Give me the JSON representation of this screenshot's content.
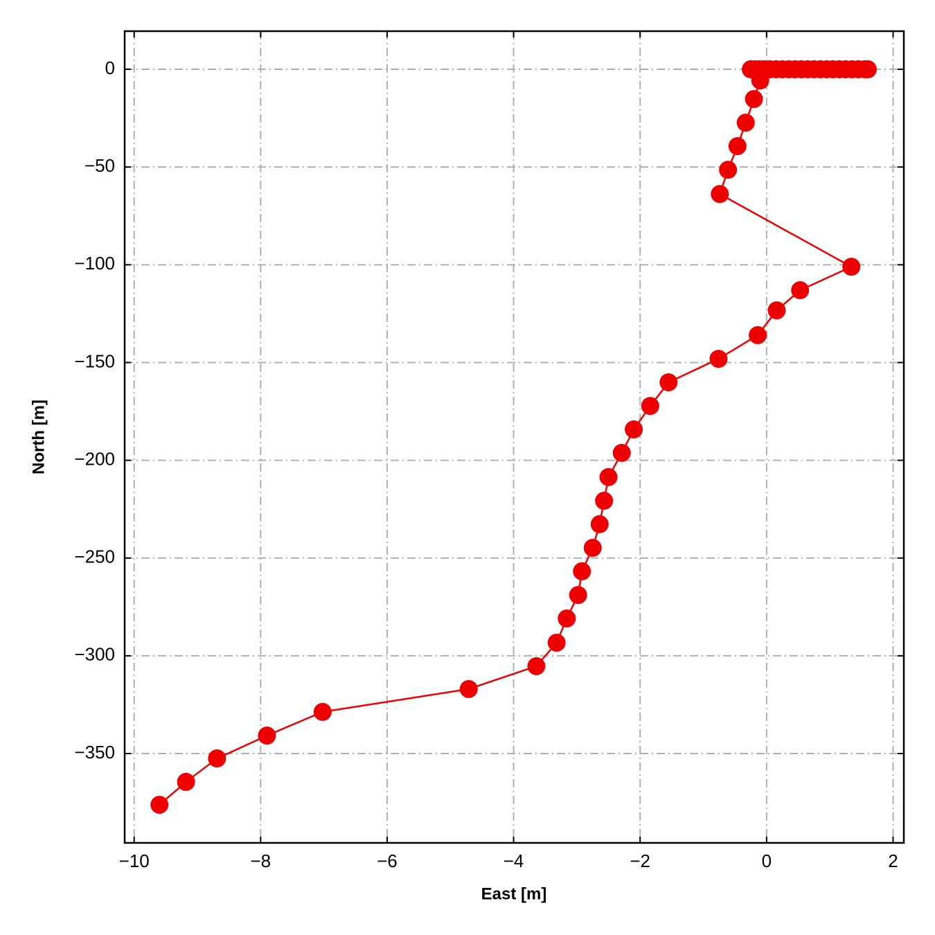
{
  "chart_data": {
    "type": "line",
    "x_label": "East [m]",
    "y_label": "North [m]",
    "series": [
      {
        "color": "#ee0000",
        "x": [
          -9.6,
          -9.18,
          -8.69,
          -7.9,
          -7.02,
          -4.71,
          -3.64,
          -3.32,
          -3.16,
          -2.98,
          -2.92,
          -2.75,
          -2.64,
          -2.57,
          -2.5,
          -2.29,
          -2.1,
          -1.84,
          -1.55,
          -0.76,
          -0.14,
          0.16,
          0.53,
          1.34,
          -0.74,
          -0.61,
          -0.46,
          -0.33,
          -0.2,
          -0.1,
          -0.25,
          -0.18,
          -0.11,
          -0.04,
          0.05,
          0.15,
          0.25,
          0.35,
          0.45,
          0.55,
          0.65,
          0.75,
          0.85,
          0.95,
          1.05,
          1.15,
          1.25,
          1.35,
          1.45,
          1.55,
          1.6
        ],
        "values": [
          -376.2,
          -364.5,
          -352.5,
          -340.8,
          -328.7,
          -317.0,
          -305.3,
          -293.3,
          -280.9,
          -268.9,
          -256.8,
          -244.8,
          -232.7,
          -220.7,
          -208.6,
          -196.2,
          -184.2,
          -172.2,
          -160.1,
          -148.1,
          -136.0,
          -123.3,
          -113.0,
          -101.0,
          -63.8,
          -51.4,
          -39.3,
          -27.3,
          -15.2,
          -5.7,
          0,
          0,
          0,
          0,
          0,
          0,
          0,
          0,
          0,
          0,
          0,
          0,
          0,
          0,
          0,
          0,
          0,
          0,
          0,
          0,
          0
        ]
      }
    ],
    "xlim": [
      -10.15,
      2.17
    ],
    "ylim": [
      -395.7,
      19.5
    ],
    "xticks": [
      {
        "value": -10,
        "label": "−10"
      },
      {
        "value": -8,
        "label": "−8"
      },
      {
        "value": -6,
        "label": "−6"
      },
      {
        "value": -4,
        "label": "−4"
      },
      {
        "value": -2,
        "label": "−2"
      },
      0,
      2
    ],
    "yticks": [
      0,
      {
        "value": -50,
        "label": "−50"
      },
      {
        "value": -100,
        "label": "−100"
      },
      {
        "value": -150,
        "label": "−150"
      },
      {
        "value": -200,
        "label": "−200"
      },
      {
        "value": -250,
        "label": "−250"
      },
      {
        "value": -300,
        "label": "−300"
      },
      {
        "value": -350,
        "label": "−350"
      }
    ],
    "grid": true
  }
}
